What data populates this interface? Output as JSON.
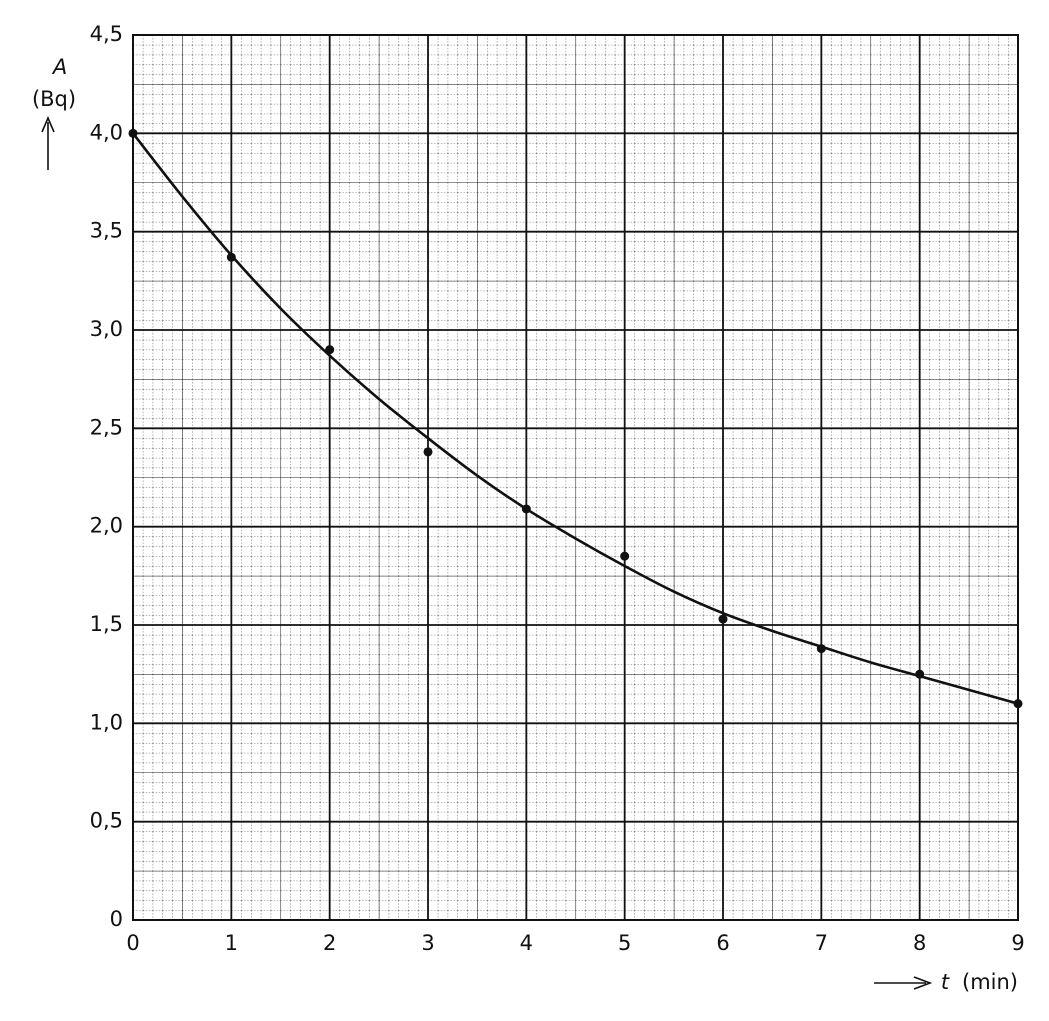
{
  "chart_data": {
    "type": "scatter",
    "y_label": "A",
    "y_unit": "(Bq)",
    "x_label": "t",
    "x_unit": "(min)",
    "xlim": [
      0,
      9
    ],
    "ylim": [
      0,
      4.5
    ],
    "xticks": [
      0,
      1,
      2,
      3,
      4,
      5,
      6,
      7,
      8,
      9
    ],
    "yticks": [
      0,
      {
        "value": 0.5,
        "label": "0,5"
      },
      {
        "value": 1.0,
        "label": "1,0"
      },
      {
        "value": 1.5,
        "label": "1,5"
      },
      {
        "value": 2.0,
        "label": "2,0"
      },
      {
        "value": 2.5,
        "label": "2,5"
      },
      {
        "value": 3.0,
        "label": "3,0"
      },
      {
        "value": 3.5,
        "label": "3,5"
      },
      {
        "value": 4.0,
        "label": "4,0"
      },
      {
        "value": 4.5,
        "label": "4,5"
      }
    ],
    "grid": true,
    "series": [
      {
        "type": "scatter",
        "color": "#111111",
        "x": [
          0,
          1,
          2,
          3,
          4,
          5,
          6,
          7,
          8,
          9
        ],
        "values": [
          4.0,
          3.37,
          2.9,
          2.38,
          2.09,
          1.85,
          1.53,
          1.38,
          1.25,
          1.1
        ]
      },
      {
        "type": "line",
        "color": "#111111",
        "x": [
          0,
          0.5,
          1,
          1.5,
          2,
          2.5,
          3,
          3.5,
          4,
          4.5,
          5,
          5.5,
          6,
          6.5,
          7,
          7.5,
          8,
          8.5,
          9
        ],
        "values": [
          4.0,
          3.68,
          3.38,
          3.11,
          2.87,
          2.65,
          2.45,
          2.26,
          2.09,
          1.94,
          1.8,
          1.67,
          1.56,
          1.47,
          1.39,
          1.31,
          1.24,
          1.17,
          1.1
        ]
      }
    ]
  }
}
